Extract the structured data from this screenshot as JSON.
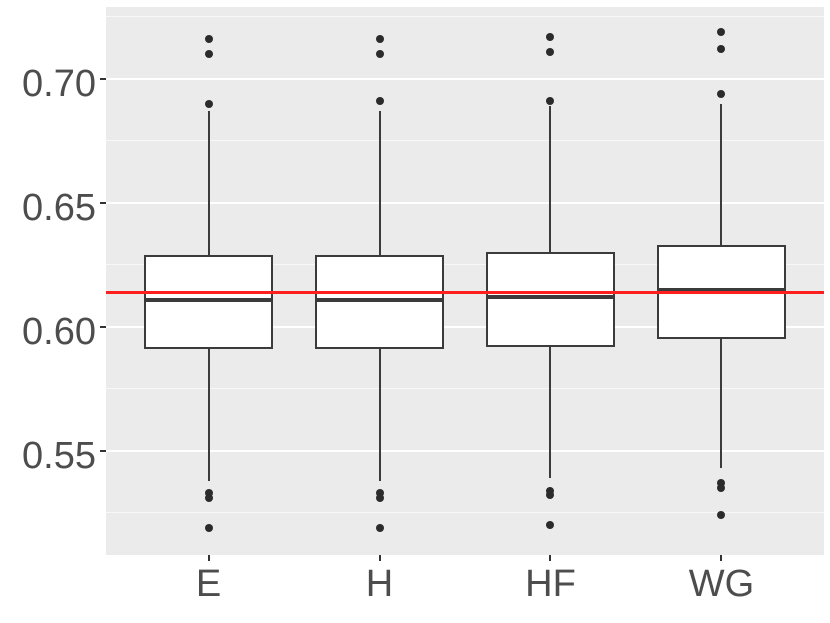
{
  "chart_data": {
    "type": "boxplot",
    "title": "",
    "xlabel": "",
    "ylabel": "",
    "categories": [
      "E",
      "H",
      "HF",
      "WG"
    ],
    "ylim": [
      0.508,
      0.729
    ],
    "yticks_major": [
      0.55,
      0.6,
      0.65,
      0.7
    ],
    "ytick_labels": [
      "0.55",
      "0.60",
      "0.65",
      "0.70"
    ],
    "yticks_minor": [
      0.525,
      0.575,
      0.625,
      0.675,
      0.725
    ],
    "grid": "on",
    "legend": "none",
    "reference_line": {
      "value": 0.614,
      "color": "#FF1F1F"
    },
    "boxes": [
      {
        "label": "E",
        "q1": 0.591,
        "median": 0.611,
        "q3": 0.629,
        "whisker_low": 0.538,
        "whisker_high": 0.687,
        "outliers": [
          0.716,
          0.71,
          0.69,
          0.533,
          0.531,
          0.519
        ]
      },
      {
        "label": "H",
        "q1": 0.591,
        "median": 0.611,
        "q3": 0.629,
        "whisker_low": 0.538,
        "whisker_high": 0.687,
        "outliers": [
          0.716,
          0.71,
          0.691,
          0.533,
          0.531,
          0.519
        ]
      },
      {
        "label": "HF",
        "q1": 0.592,
        "median": 0.612,
        "q3": 0.63,
        "whisker_low": 0.539,
        "whisker_high": 0.689,
        "outliers": [
          0.717,
          0.711,
          0.691,
          0.534,
          0.532,
          0.52
        ]
      },
      {
        "label": "WG",
        "q1": 0.595,
        "median": 0.615,
        "q3": 0.633,
        "whisker_low": 0.543,
        "whisker_high": 0.69,
        "outliers": [
          0.719,
          0.712,
          0.694,
          0.537,
          0.535,
          0.524
        ]
      }
    ],
    "colors": {
      "panel_background": "#EBEBEB",
      "gridline": "#FFFFFF",
      "box_stroke": "#3B3B3B",
      "box_fill": "#FFFFFF",
      "median": "#3B3B3B",
      "outlier": "#2B2B2B",
      "reference_line": "#FF1F1F",
      "axis_text": "#4D4D4D",
      "tick_mark": "#333333"
    }
  }
}
